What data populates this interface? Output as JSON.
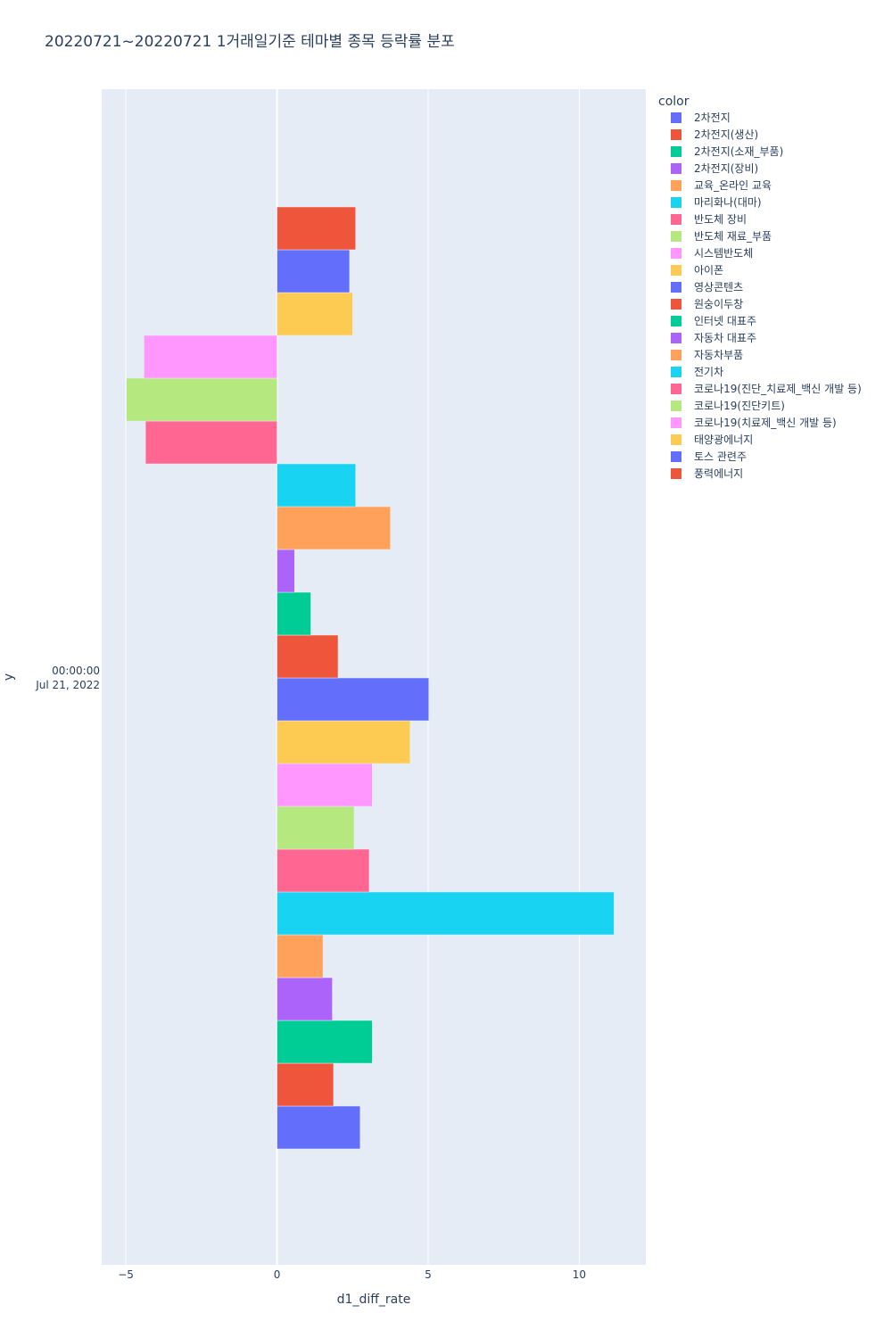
{
  "chart_data": {
    "type": "bar",
    "orientation": "horizontal",
    "title": "20220721~20220721 1거래일기준 테마별 종목 등락률 분포",
    "xlabel": "d1_diff_rate",
    "ylabel": "y",
    "y_category": [
      "00:00:00",
      "Jul 21, 2022"
    ],
    "xlim": [
      -5.8,
      12.2
    ],
    "x_ticks": [
      -5,
      0,
      5,
      10
    ],
    "x_tick_labels": [
      "−5",
      "0",
      "5",
      "10"
    ],
    "grid": true,
    "legend_title": "color",
    "legend_position": "right",
    "series": [
      {
        "name": "2차전지",
        "value": 2.75,
        "color": "#636efa"
      },
      {
        "name": "2차전지(생산)",
        "value": 1.87,
        "color": "#EF553B"
      },
      {
        "name": "2차전지(소재_부품)",
        "value": 3.15,
        "color": "#00cc96"
      },
      {
        "name": "2차전지(장비)",
        "value": 1.83,
        "color": "#ab63fa"
      },
      {
        "name": "교육_온라인 교육",
        "value": 1.52,
        "color": "#FFA15A"
      },
      {
        "name": "마리화나(대마)",
        "value": 11.15,
        "color": "#19d3f3"
      },
      {
        "name": "반도체 장비",
        "value": 3.05,
        "color": "#FF6692"
      },
      {
        "name": "반도체 재료_부품",
        "value": 2.55,
        "color": "#B6E880"
      },
      {
        "name": "시스템반도체",
        "value": 3.15,
        "color": "#FF97FF"
      },
      {
        "name": "아이폰",
        "value": 4.4,
        "color": "#FECB52"
      },
      {
        "name": "영상콘텐츠",
        "value": 5.02,
        "color": "#636efa"
      },
      {
        "name": "원숭이두창",
        "value": 2.02,
        "color": "#EF553B"
      },
      {
        "name": "인터넷 대표주",
        "value": 1.12,
        "color": "#00cc96"
      },
      {
        "name": "자동차 대표주",
        "value": 0.58,
        "color": "#ab63fa"
      },
      {
        "name": "자동차부품",
        "value": 3.75,
        "color": "#FFA15A"
      },
      {
        "name": "전기차",
        "value": 2.6,
        "color": "#19d3f3"
      },
      {
        "name": "코로나19(진단_치료제_백신 개발 등)",
        "value": -4.35,
        "color": "#FF6692"
      },
      {
        "name": "코로나19(진단키트)",
        "value": -4.98,
        "color": "#B6E880"
      },
      {
        "name": "코로나19(치료제_백신 개발 등)",
        "value": -4.4,
        "color": "#FF97FF"
      },
      {
        "name": "태양광에너지",
        "value": 2.5,
        "color": "#FECB52"
      },
      {
        "name": "토스 관련주",
        "value": 2.4,
        "color": "#636efa"
      },
      {
        "name": "풍력에너지",
        "value": 2.6,
        "color": "#EF553B"
      }
    ]
  }
}
